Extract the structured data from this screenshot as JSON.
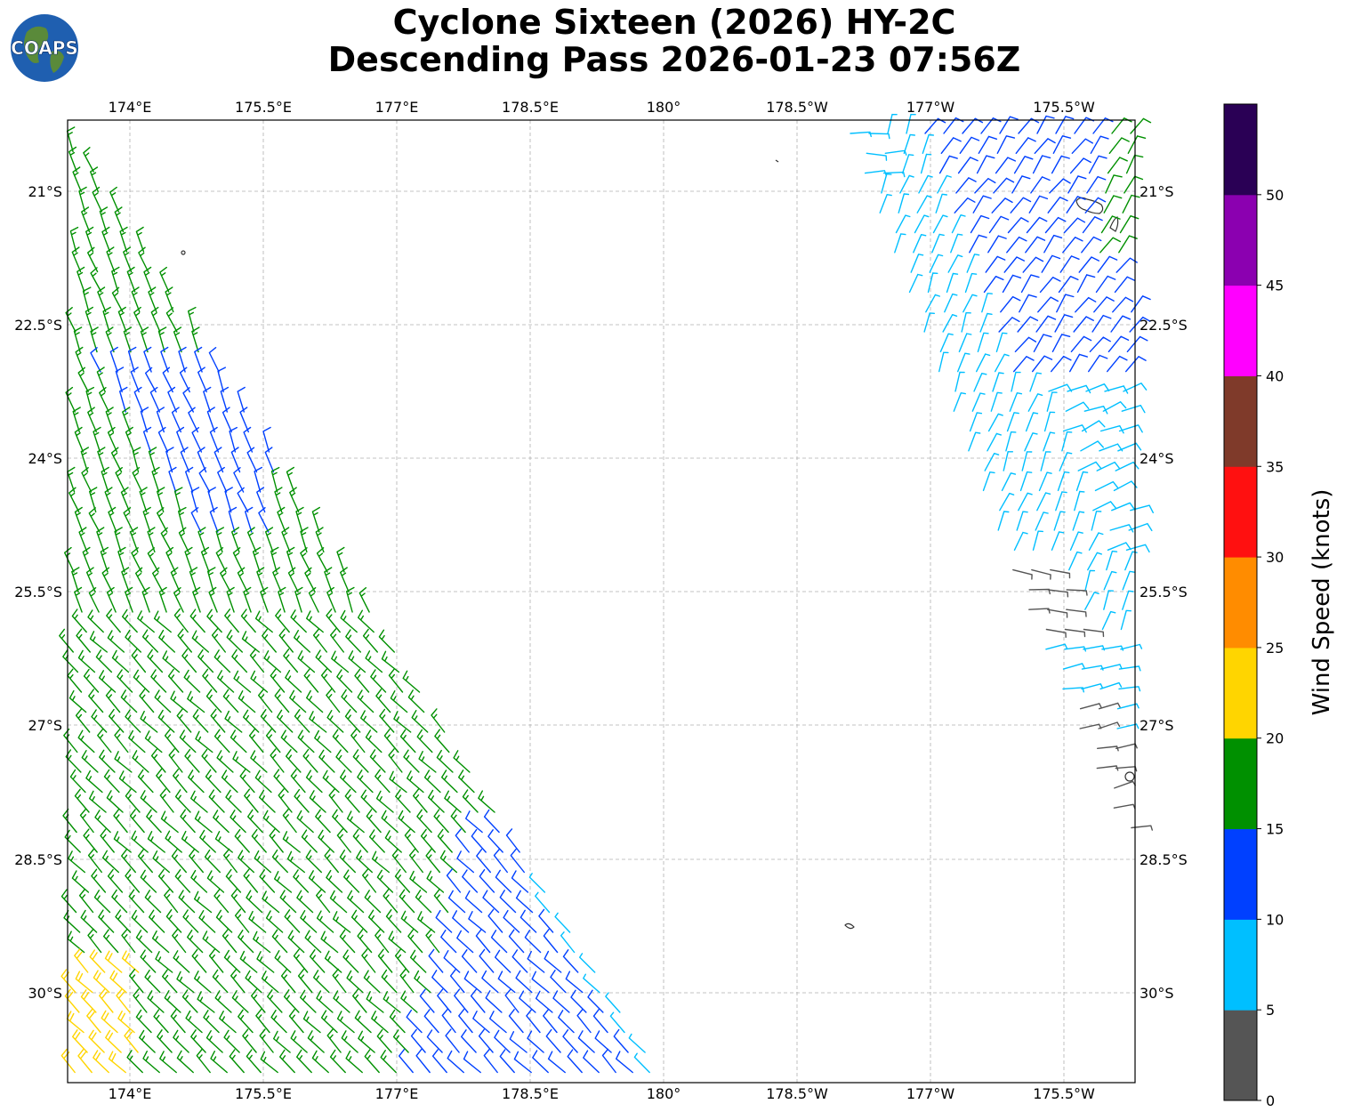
{
  "title": {
    "line1": "Cyclone Sixteen (2026) HY-2C",
    "line2": "Descending Pass 2026-01-23 07:56Z"
  },
  "logo": {
    "text": "COAPS",
    "icon": "globe-icon"
  },
  "map": {
    "lon_ticks": [
      "174°E",
      "175.5°E",
      "177°E",
      "178.5°E",
      "180°",
      "178.5°W",
      "177°W",
      "175.5°W"
    ],
    "lat_ticks": [
      "21°S",
      "22.5°S",
      "24°S",
      "25.5°S",
      "27°S",
      "28.5°S",
      "30°S"
    ],
    "grid": true
  },
  "colorbar": {
    "label": "Wind Speed (knots)",
    "ticks": [
      "0",
      "5",
      "10",
      "15",
      "20",
      "25",
      "30",
      "35",
      "40",
      "45",
      "50"
    ],
    "colors": [
      "#555555",
      "#00bfff",
      "#0040ff",
      "#009000",
      "#ffd500",
      "#ff8c00",
      "#ff1010",
      "#7f3a2a",
      "#ff00ff",
      "#8b00b0",
      "#2a0055"
    ]
  }
}
